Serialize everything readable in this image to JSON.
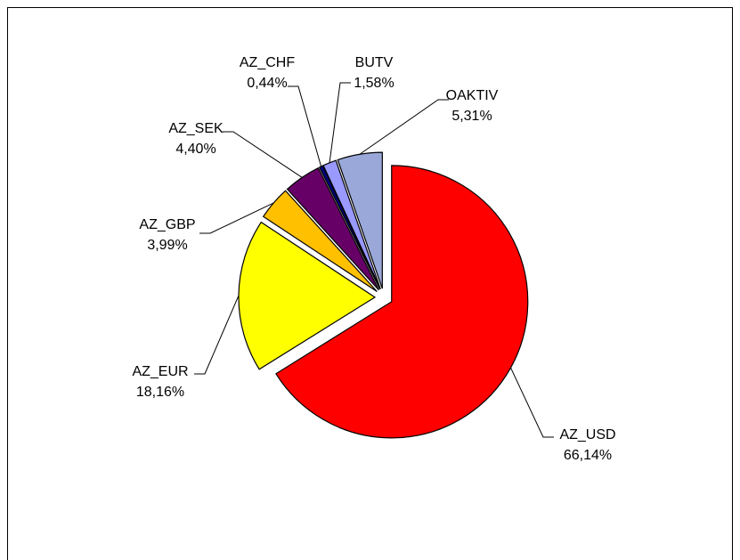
{
  "chart_data": {
    "type": "pie",
    "categories": [
      "AZ_USD",
      "AZ_EUR",
      "AZ_GBP",
      "AZ_SEK",
      "AZ_CHF",
      "BUTV",
      "OAKTIV"
    ],
    "values": [
      66.14,
      18.16,
      3.99,
      4.4,
      0.44,
      1.58,
      5.31
    ],
    "value_labels": [
      "66,14%",
      "18,16%",
      "3,99%",
      "4,40%",
      "0,44%",
      "1,58%",
      "5,31%"
    ],
    "colors": [
      "#ff0000",
      "#ffff00",
      "#ffc000",
      "#660066",
      "#000080",
      "#9999ff",
      "#99a8d8"
    ]
  }
}
